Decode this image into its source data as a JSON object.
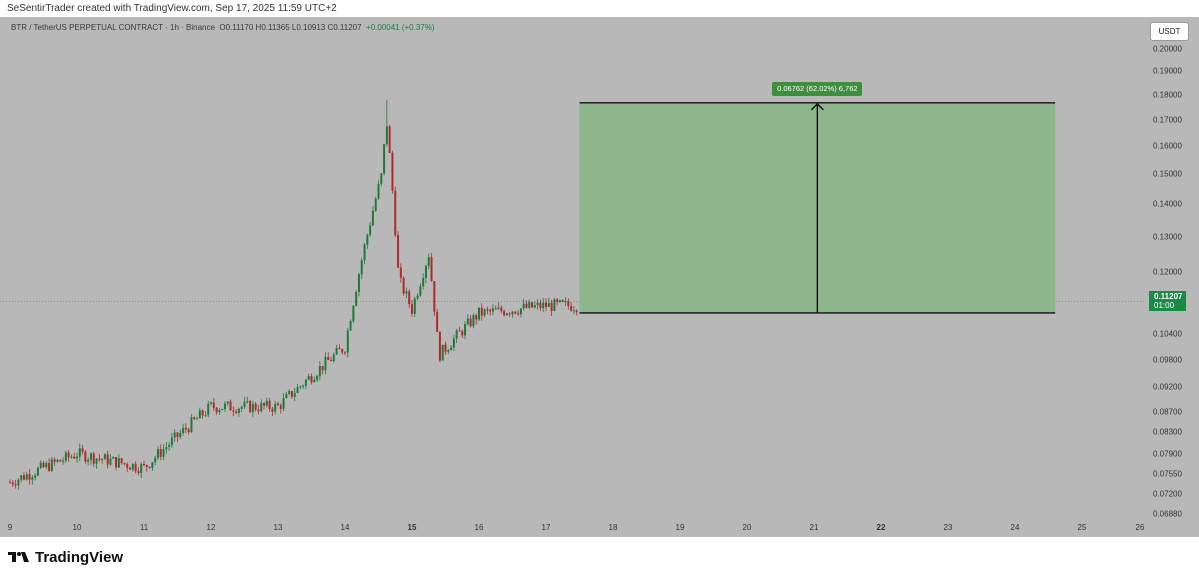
{
  "header": {
    "caption": "SeSentirTrader created with TradingView.com, Sep 17, 2025 11:59 UTC+2"
  },
  "symbol": {
    "name": "BTR / TetherUS PERPETUAL CONTRACT · 1h · Binance",
    "ohlc": "O0.11170  H0.11365  L0.10913  C0.11207",
    "change": "+0.00041 (+0.37%)"
  },
  "price_axis": {
    "currency": "USDT",
    "ticks": [
      "0.20000",
      "0.19000",
      "0.18000",
      "0.17000",
      "0.16000",
      "0.15000",
      "0.14000",
      "0.13000",
      "0.12000",
      "0.10400",
      "0.09800",
      "0.09200",
      "0.08700",
      "0.08300",
      "0.07900",
      "0.07550",
      "0.07200",
      "0.06880"
    ],
    "last_price": "0.11207",
    "countdown": "01:00"
  },
  "time_axis": {
    "ticks": [
      "9",
      "10",
      "11",
      "12",
      "13",
      "14",
      "15",
      "16",
      "17",
      "18",
      "19",
      "20",
      "21",
      "22",
      "23",
      "24",
      "25",
      "26"
    ],
    "bold_ticks": [
      "15",
      "22"
    ]
  },
  "price_range_tool": {
    "label": "0.06762 (62.02%) 6,762",
    "fill_color": "#8db68d",
    "from_price": 0.10913,
    "to_price": 0.17675
  },
  "colors": {
    "background": "#b8b8b8",
    "up_candle": "#1f7a3a",
    "down_candle": "#b02a2a",
    "last_price_badge": "#1a8a46"
  },
  "footer": {
    "brand": "TradingView"
  },
  "chart_data": {
    "type": "candlestick",
    "x": [
      "9",
      "10",
      "11",
      "12",
      "13",
      "14",
      "15",
      "16",
      "17"
    ],
    "close": [
      0.074,
      0.079,
      0.0765,
      0.088,
      0.088,
      0.101,
      0.11,
      0.109,
      0.111
    ],
    "high": [
      0.076,
      0.081,
      0.079,
      0.0925,
      0.0895,
      0.178,
      0.13,
      0.113,
      0.1137
    ],
    "low": [
      0.069,
      0.073,
      0.0745,
      0.0815,
      0.086,
      0.099,
      0.0955,
      0.104,
      0.105
    ],
    "scale": "log"
  }
}
